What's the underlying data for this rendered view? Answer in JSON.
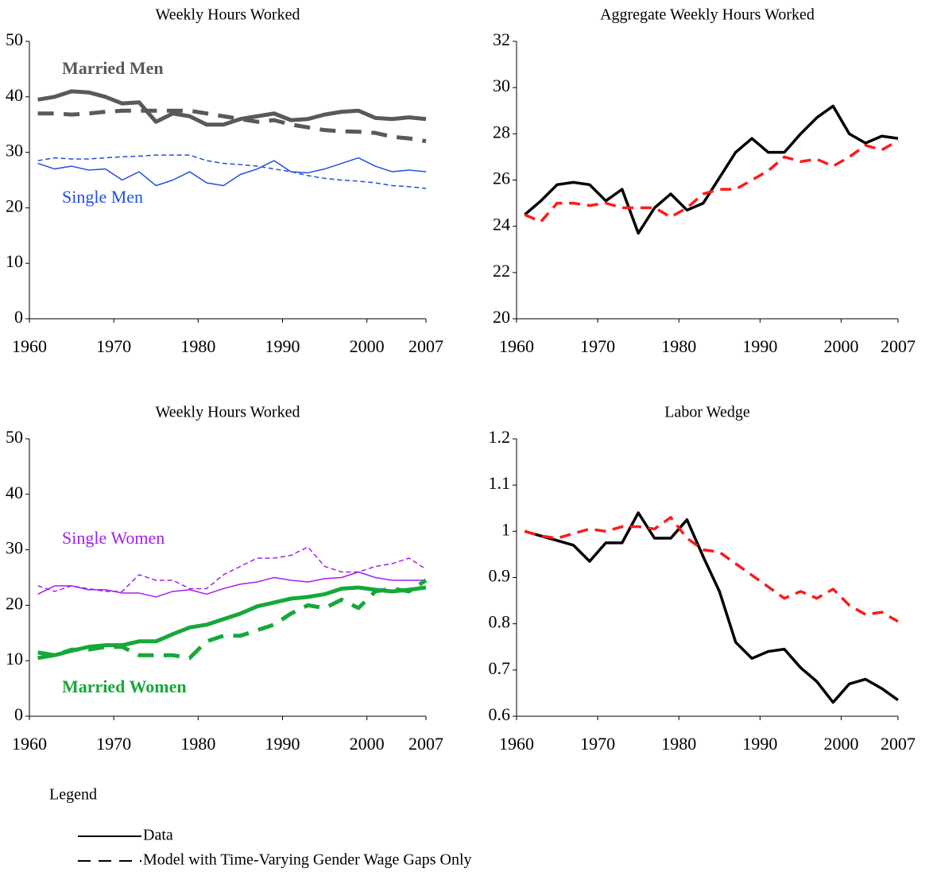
{
  "chart_data": [
    {
      "type": "line",
      "title": "Weekly Hours Worked",
      "x": [
        1961,
        1963,
        1965,
        1967,
        1969,
        1971,
        1973,
        1975,
        1977,
        1979,
        1981,
        1983,
        1985,
        1987,
        1989,
        1991,
        1993,
        1995,
        1997,
        1999,
        2001,
        2003,
        2005,
        2007
      ],
      "xlim": [
        1960,
        2007
      ],
      "xticks": [
        1960,
        1970,
        1980,
        1990,
        2000,
        2007
      ],
      "ylim": [
        0,
        50
      ],
      "yticks": [
        0,
        10,
        20,
        30,
        40,
        50
      ],
      "annotations": [
        {
          "text": "Married Men",
          "color": "#595959",
          "bold": true
        },
        {
          "text": "Single Men",
          "color": "#1f4fe0",
          "bold": false
        }
      ],
      "series": [
        {
          "color": "#595959",
          "width": 5,
          "dashed": false,
          "values": [
            39.5,
            40,
            41,
            40.8,
            40,
            38.8,
            39,
            35.5,
            37,
            36.5,
            35,
            35,
            36,
            36.5,
            37,
            35.8,
            36,
            36.8,
            37.3,
            37.5,
            36.2,
            36,
            36.3,
            36
          ]
        },
        {
          "color": "#595959",
          "width": 5,
          "dashed": true,
          "values": [
            37,
            37,
            36.8,
            37,
            37.3,
            37.5,
            37.5,
            37.5,
            37.5,
            37.5,
            37,
            36.5,
            36,
            35.5,
            35.8,
            35,
            34.5,
            34,
            33.8,
            33.7,
            33.5,
            32.8,
            32.5,
            32
          ]
        },
        {
          "color": "#1f4fe0",
          "width": 1.5,
          "dashed": false,
          "values": [
            28,
            27,
            27.5,
            26.8,
            27,
            25,
            26.5,
            24,
            25,
            26.5,
            24.5,
            24,
            26,
            27,
            28.5,
            26.5,
            26.3,
            27,
            28,
            29,
            27.5,
            26.5,
            26.8,
            26.5
          ]
        },
        {
          "color": "#1f4fe0",
          "width": 1.5,
          "dashed": true,
          "values": [
            28.5,
            29,
            28.8,
            28.8,
            29,
            29.2,
            29.3,
            29.5,
            29.5,
            29.5,
            28.5,
            28,
            27.8,
            27.5,
            27,
            26.5,
            25.8,
            25.3,
            25,
            24.8,
            24.5,
            24,
            23.8,
            23.5
          ]
        }
      ]
    },
    {
      "type": "line",
      "title": "Aggregate Weekly Hours Worked",
      "x": [
        1961,
        1963,
        1965,
        1967,
        1969,
        1971,
        1973,
        1975,
        1977,
        1979,
        1981,
        1983,
        1985,
        1987,
        1989,
        1991,
        1993,
        1995,
        1997,
        1999,
        2001,
        2003,
        2005,
        2007
      ],
      "xlim": [
        1960,
        2007
      ],
      "xticks": [
        1960,
        1970,
        1980,
        1990,
        2000,
        2007
      ],
      "ylim": [
        20,
        32
      ],
      "yticks": [
        20,
        22,
        24,
        26,
        28,
        30,
        32
      ],
      "annotations": [],
      "series": [
        {
          "color": "#000000",
          "width": 3.5,
          "dashed": false,
          "values": [
            24.5,
            25.1,
            25.8,
            25.9,
            25.8,
            25.1,
            25.6,
            23.7,
            24.8,
            25.4,
            24.7,
            25,
            26.1,
            27.2,
            27.8,
            27.2,
            27.2,
            28,
            28.7,
            29.2,
            28,
            27.6,
            27.9,
            27.8
          ]
        },
        {
          "color": "#ff1a1a",
          "width": 3.5,
          "dashed": true,
          "values": [
            24.5,
            24.2,
            25,
            25,
            24.9,
            25,
            24.8,
            24.8,
            24.8,
            24.4,
            24.8,
            25.4,
            25.6,
            25.6,
            26,
            26.4,
            27,
            26.8,
            26.9,
            26.6,
            27,
            27.5,
            27.3,
            27.7
          ]
        }
      ]
    },
    {
      "type": "line",
      "title": "Weekly Hours Worked",
      "x": [
        1961,
        1963,
        1965,
        1967,
        1969,
        1971,
        1973,
        1975,
        1977,
        1979,
        1981,
        1983,
        1985,
        1987,
        1989,
        1991,
        1993,
        1995,
        1997,
        1999,
        2001,
        2003,
        2005,
        2007
      ],
      "xlim": [
        1960,
        2007
      ],
      "xticks": [
        1960,
        1970,
        1980,
        1990,
        2000,
        2007
      ],
      "ylim": [
        0,
        50
      ],
      "yticks": [
        0,
        10,
        20,
        30,
        40,
        50
      ],
      "annotations": [
        {
          "text": "Single Women",
          "color": "#a020f0",
          "bold": false
        },
        {
          "text": "Married Women",
          "color": "#16a83a",
          "bold": true
        }
      ],
      "series": [
        {
          "color": "#a020f0",
          "width": 1.5,
          "dashed": false,
          "values": [
            22,
            23.5,
            23.5,
            22.8,
            22.8,
            22.2,
            22.2,
            21.5,
            22.5,
            22.8,
            22,
            23,
            23.8,
            24.2,
            25,
            24.5,
            24.2,
            24.8,
            25,
            26,
            25,
            24.5,
            24.5,
            24.5
          ]
        },
        {
          "color": "#a020f0",
          "width": 1.5,
          "dashed": true,
          "values": [
            23.5,
            22.5,
            23.5,
            23,
            22.5,
            22.5,
            25.5,
            24.5,
            24.5,
            23,
            23,
            25.5,
            27,
            28.5,
            28.5,
            29,
            30.5,
            27,
            26,
            26,
            27,
            27.5,
            28.5,
            26.5
          ]
        },
        {
          "color": "#16a83a",
          "width": 5,
          "dashed": false,
          "values": [
            10.5,
            11,
            11.8,
            12.5,
            12.8,
            12.8,
            13.5,
            13.5,
            14.8,
            16,
            16.5,
            17.5,
            18.5,
            19.8,
            20.5,
            21.2,
            21.5,
            22,
            23,
            23.2,
            22.8,
            22.5,
            22.8,
            23.2
          ]
        },
        {
          "color": "#16a83a",
          "width": 5,
          "dashed": true,
          "values": [
            11.5,
            11,
            12,
            12,
            12.5,
            12.5,
            11,
            11,
            11,
            10.5,
            13.5,
            14.5,
            14.5,
            15.5,
            16.5,
            18.5,
            20,
            19.5,
            21,
            19.5,
            22.5,
            23,
            22.5,
            24.5
          ]
        }
      ]
    },
    {
      "type": "line",
      "title": "Labor Wedge",
      "x": [
        1961,
        1963,
        1965,
        1967,
        1969,
        1971,
        1973,
        1975,
        1977,
        1979,
        1981,
        1983,
        1985,
        1987,
        1989,
        1991,
        1993,
        1995,
        1997,
        1999,
        2001,
        2003,
        2005,
        2007
      ],
      "xlim": [
        1960,
        2007
      ],
      "xticks": [
        1960,
        1970,
        1980,
        1990,
        2000,
        2007
      ],
      "ylim": [
        0.6,
        1.2
      ],
      "yticks": [
        0.6,
        0.7,
        0.8,
        0.9,
        1,
        1.1,
        1.2
      ],
      "annotations": [],
      "series": [
        {
          "color": "#000000",
          "width": 3.5,
          "dashed": false,
          "values": [
            1.0,
            0.99,
            0.98,
            0.97,
            0.935,
            0.975,
            0.975,
            1.04,
            0.985,
            0.985,
            1.025,
            0.945,
            0.87,
            0.76,
            0.725,
            0.74,
            0.745,
            0.705,
            0.675,
            0.63,
            0.67,
            0.68,
            0.66,
            0.635
          ]
        },
        {
          "color": "#ff1a1a",
          "width": 3.5,
          "dashed": true,
          "values": [
            1.0,
            0.99,
            0.985,
            0.995,
            1.005,
            1.0,
            1.01,
            1.01,
            1.005,
            1.03,
            0.985,
            0.96,
            0.955,
            0.93,
            0.905,
            0.88,
            0.855,
            0.87,
            0.855,
            0.875,
            0.84,
            0.82,
            0.825,
            0.805
          ]
        }
      ]
    }
  ],
  "legend": {
    "title": "Legend",
    "items": [
      {
        "label": "Data",
        "dashed": false
      },
      {
        "label": "Model with Time-Varying Gender Wage Gaps Only",
        "dashed": true
      }
    ]
  }
}
